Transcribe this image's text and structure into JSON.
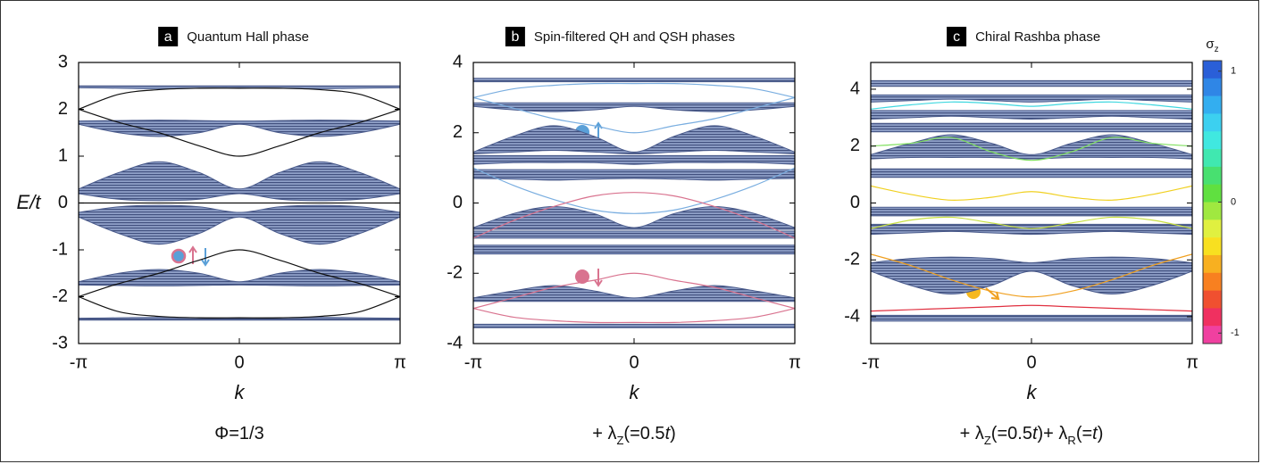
{
  "chart_data": [
    {
      "type": "band",
      "panel_label": "a",
      "title": "Quantum Hall phase",
      "ylabel": "E/t",
      "xlabel": "k",
      "caption": [
        {
          "text": "Φ=1/3"
        }
      ],
      "x": [
        -3.1416,
        -2.3562,
        -1.5708,
        -0.7854,
        0,
        0.7854,
        1.5708,
        2.3562,
        3.1416
      ],
      "xlim": [
        -3.1416,
        3.1416
      ],
      "xticks": [
        {
          "value": -3.1416,
          "label": "-π"
        },
        0,
        {
          "value": 3.1416,
          "label": "π"
        }
      ],
      "ylim": [
        -3,
        3
      ],
      "yticks": [
        -3,
        -2,
        -1,
        0,
        1,
        2,
        3
      ],
      "band_color": "#4a5b8c",
      "bands": [
        {
          "lower": [
            2.46,
            2.45,
            2.44,
            2.45,
            2.46,
            2.45,
            2.44,
            2.45,
            2.46
          ],
          "upper": [
            2.5,
            2.5,
            2.5,
            2.5,
            2.5,
            2.5,
            2.5,
            2.5,
            2.5
          ]
        },
        {
          "lower": [
            1.68,
            1.5,
            1.42,
            1.5,
            1.68,
            1.5,
            1.42,
            1.5,
            1.68
          ],
          "upper": [
            1.75,
            1.76,
            1.77,
            1.76,
            1.75,
            1.76,
            1.77,
            1.76,
            1.75
          ]
        },
        {
          "lower": [
            0.2,
            0.08,
            0.05,
            0.08,
            0.2,
            0.08,
            0.05,
            0.08,
            0.2
          ],
          "upper": [
            0.3,
            0.65,
            0.88,
            0.65,
            0.3,
            0.65,
            0.88,
            0.65,
            0.3
          ]
        },
        {
          "lower": [
            -0.3,
            -0.65,
            -0.88,
            -0.65,
            -0.3,
            -0.65,
            -0.88,
            -0.65,
            -0.3
          ],
          "upper": [
            -0.2,
            -0.08,
            -0.05,
            -0.08,
            -0.2,
            -0.08,
            -0.05,
            -0.08,
            -0.2
          ]
        },
        {
          "lower": [
            -1.75,
            -1.76,
            -1.77,
            -1.76,
            -1.75,
            -1.76,
            -1.77,
            -1.76,
            -1.75
          ],
          "upper": [
            -1.68,
            -1.5,
            -1.42,
            -1.5,
            -1.68,
            -1.5,
            -1.42,
            -1.5,
            -1.68
          ]
        },
        {
          "lower": [
            -2.5,
            -2.5,
            -2.5,
            -2.5,
            -2.5,
            -2.5,
            -2.5,
            -2.5,
            -2.5
          ],
          "upper": [
            -2.46,
            -2.45,
            -2.44,
            -2.45,
            -2.46,
            -2.45,
            -2.44,
            -2.45,
            -2.46
          ]
        }
      ],
      "lines": [
        {
          "color": "#111111",
          "values": [
            2.0,
            2.32,
            2.42,
            2.45,
            2.45,
            2.45,
            2.42,
            2.32,
            2.0
          ]
        },
        {
          "color": "#111111",
          "values": [
            2.0,
            1.72,
            1.5,
            1.22,
            1.0,
            1.22,
            1.5,
            1.72,
            2.0
          ]
        },
        {
          "color": "#111111",
          "values": [
            0,
            0,
            0,
            0,
            0,
            0,
            0,
            0,
            0
          ]
        },
        {
          "color": "#111111",
          "values": [
            -2.0,
            -1.72,
            -1.5,
            -1.22,
            -1.0,
            -1.22,
            -1.5,
            -1.72,
            -2.0
          ]
        },
        {
          "color": "#111111",
          "values": [
            -2.0,
            -2.32,
            -2.42,
            -2.45,
            -2.45,
            -2.45,
            -2.42,
            -2.32,
            -2.0
          ]
        }
      ]
    },
    {
      "type": "band",
      "panel_label": "b",
      "title": "Spin-filtered QH and QSH phases",
      "xlabel": "k",
      "caption": [
        {
          "text": "+ λ"
        },
        {
          "text": "Z",
          "sub": true
        },
        {
          "text": "(=0.5"
        },
        {
          "text": "t",
          "italic": true
        },
        {
          "text": ")"
        }
      ],
      "x": [
        -3.1416,
        -2.3562,
        -1.5708,
        -0.7854,
        0,
        0.7854,
        1.5708,
        2.3562,
        3.1416
      ],
      "xlim": [
        -3.1416,
        3.1416
      ],
      "xticks": [
        {
          "value": -3.1416,
          "label": "-π"
        },
        0,
        {
          "value": 3.1416,
          "label": "π"
        }
      ],
      "ylim": [
        -4,
        4
      ],
      "yticks": [
        -4,
        -2,
        0,
        2,
        4
      ],
      "band_color": "#4a5b8c",
      "bands": [
        {
          "lower": [
            3.45,
            3.45,
            3.45,
            3.45,
            3.45,
            3.45,
            3.45,
            3.45,
            3.45
          ],
          "upper": [
            3.55,
            3.55,
            3.55,
            3.55,
            3.55,
            3.55,
            3.55,
            3.55,
            3.55
          ]
        },
        {
          "lower": [
            2.75,
            2.65,
            2.6,
            2.65,
            2.75,
            2.65,
            2.6,
            2.65,
            2.75
          ],
          "upper": [
            2.85,
            2.85,
            2.85,
            2.85,
            2.85,
            2.85,
            2.85,
            2.85,
            2.85
          ]
        },
        {
          "lower": [
            1.4,
            1.45,
            1.5,
            1.45,
            1.4,
            1.45,
            1.5,
            1.45,
            1.4
          ],
          "upper": [
            1.45,
            1.9,
            2.2,
            1.9,
            1.45,
            1.9,
            2.2,
            1.9,
            1.45
          ]
        },
        {
          "lower": [
            1.1,
            1.15,
            1.15,
            1.15,
            1.1,
            1.15,
            1.15,
            1.15,
            1.1
          ],
          "upper": [
            1.35,
            1.35,
            1.35,
            1.35,
            1.35,
            1.35,
            1.35,
            1.35,
            1.35
          ]
        },
        {
          "lower": [
            0.7,
            0.68,
            0.65,
            0.68,
            0.7,
            0.68,
            0.65,
            0.68,
            0.7
          ],
          "upper": [
            0.95,
            0.95,
            0.95,
            0.95,
            0.95,
            0.95,
            0.95,
            0.95,
            0.95
          ]
        },
        {
          "lower": [
            -0.75,
            -0.75,
            -0.75,
            -0.75,
            -0.75,
            -0.75,
            -0.75,
            -0.75,
            -0.75
          ],
          "upper": [
            -0.7,
            -0.3,
            -0.1,
            -0.3,
            -0.7,
            -0.3,
            -0.1,
            -0.3,
            -0.7
          ]
        },
        {
          "lower": [
            -1.0,
            -1.0,
            -1.0,
            -1.0,
            -1.0,
            -1.0,
            -1.0,
            -1.0,
            -1.0
          ],
          "upper": [
            -0.8,
            -0.8,
            -0.8,
            -0.8,
            -0.8,
            -0.8,
            -0.8,
            -0.8,
            -0.8
          ]
        },
        {
          "lower": [
            -1.45,
            -1.45,
            -1.45,
            -1.45,
            -1.45,
            -1.45,
            -1.45,
            -1.45,
            -1.45
          ],
          "upper": [
            -1.2,
            -1.2,
            -1.2,
            -1.2,
            -1.2,
            -1.2,
            -1.2,
            -1.2,
            -1.2
          ]
        },
        {
          "lower": [
            -2.8,
            -2.8,
            -2.8,
            -2.8,
            -2.8,
            -2.8,
            -2.8,
            -2.8,
            -2.8
          ],
          "upper": [
            -2.7,
            -2.5,
            -2.35,
            -2.5,
            -2.7,
            -2.5,
            -2.35,
            -2.5,
            -2.7
          ]
        },
        {
          "lower": [
            -3.55,
            -3.55,
            -3.55,
            -3.55,
            -3.55,
            -3.55,
            -3.55,
            -3.55,
            -3.55
          ],
          "upper": [
            -3.45,
            -3.45,
            -3.45,
            -3.45,
            -3.45,
            -3.45,
            -3.45,
            -3.45,
            -3.45
          ]
        }
      ],
      "lines": [
        {
          "color": "#7aaee0",
          "values": [
            3.0,
            3.25,
            3.35,
            3.4,
            3.4,
            3.4,
            3.35,
            3.25,
            3.0
          ]
        },
        {
          "color": "#7aaee0",
          "values": [
            3.0,
            2.7,
            2.4,
            2.2,
            2.0,
            2.2,
            2.4,
            2.7,
            3.0
          ]
        },
        {
          "color": "#7aaee0",
          "values": [
            1.0,
            0.5,
            0.1,
            -0.2,
            -0.3,
            -0.2,
            0.1,
            0.5,
            1.0
          ]
        },
        {
          "color": "#d9738f",
          "values": [
            -1.0,
            -0.5,
            -0.1,
            0.2,
            0.3,
            0.2,
            -0.1,
            -0.5,
            -1.0
          ]
        },
        {
          "color": "#d9738f",
          "values": [
            -3.0,
            -2.7,
            -2.4,
            -2.2,
            -2.0,
            -2.2,
            -2.4,
            -2.7,
            -3.0
          ]
        },
        {
          "color": "#d9738f",
          "values": [
            -3.0,
            -3.25,
            -3.35,
            -3.4,
            -3.4,
            -3.4,
            -3.35,
            -3.25,
            -3.0
          ]
        }
      ]
    },
    {
      "type": "band",
      "panel_label": "c",
      "title": "Chiral Rashba phase",
      "xlabel": "k",
      "caption": [
        {
          "text": "+ λ"
        },
        {
          "text": "Z",
          "sub": true
        },
        {
          "text": "(=0.5"
        },
        {
          "text": "t",
          "italic": true
        },
        {
          "text": ")+ λ"
        },
        {
          "text": "R",
          "sub": true
        },
        {
          "text": "(="
        },
        {
          "text": "t",
          "italic": true
        },
        {
          "text": ")"
        }
      ],
      "x": [
        -3.1416,
        -2.3562,
        -1.5708,
        -0.7854,
        0,
        0.7854,
        1.5708,
        2.3562,
        3.1416
      ],
      "xlim": [
        -3.1416,
        3.1416
      ],
      "xticks": [
        {
          "value": -3.1416,
          "label": "-π"
        },
        0,
        {
          "value": 3.1416,
          "label": "π"
        }
      ],
      "ylim": [
        -4.94,
        4.94
      ],
      "yticks": [
        -4,
        -2,
        0,
        2,
        4
      ],
      "band_color": "#4a5b8c",
      "bands": [
        {
          "lower": [
            4.1,
            4.1,
            4.1,
            4.1,
            4.1,
            4.1,
            4.1,
            4.1,
            4.1
          ],
          "upper": [
            4.3,
            4.3,
            4.3,
            4.3,
            4.3,
            4.3,
            4.3,
            4.3,
            4.3
          ]
        },
        {
          "lower": [
            3.55,
            3.6,
            3.65,
            3.6,
            3.55,
            3.6,
            3.65,
            3.6,
            3.55
          ],
          "upper": [
            3.8,
            3.8,
            3.8,
            3.8,
            3.8,
            3.8,
            3.8,
            3.8,
            3.8
          ]
        },
        {
          "lower": [
            2.95,
            3.0,
            3.05,
            3.0,
            2.95,
            3.0,
            3.05,
            3.0,
            2.95
          ],
          "upper": [
            3.25,
            3.25,
            3.25,
            3.25,
            3.25,
            3.25,
            3.25,
            3.25,
            3.25
          ]
        },
        {
          "lower": [
            2.5,
            2.5,
            2.5,
            2.5,
            2.5,
            2.5,
            2.5,
            2.5,
            2.5
          ],
          "upper": [
            2.8,
            2.8,
            2.8,
            2.8,
            2.8,
            2.8,
            2.8,
            2.8,
            2.8
          ]
        },
        {
          "lower": [
            1.55,
            1.6,
            1.6,
            1.6,
            1.55,
            1.6,
            1.6,
            1.6,
            1.55
          ],
          "upper": [
            1.7,
            2.1,
            2.4,
            2.1,
            1.7,
            2.1,
            2.4,
            2.1,
            1.7
          ]
        },
        {
          "lower": [
            0.9,
            0.9,
            0.9,
            0.9,
            0.9,
            0.9,
            0.9,
            0.9,
            0.9
          ],
          "upper": [
            1.2,
            1.2,
            1.2,
            1.2,
            1.2,
            1.2,
            1.2,
            1.2,
            1.2
          ]
        },
        {
          "lower": [
            -0.45,
            -0.45,
            -0.45,
            -0.45,
            -0.45,
            -0.45,
            -0.45,
            -0.45,
            -0.45
          ],
          "upper": [
            -0.15,
            -0.15,
            -0.15,
            -0.15,
            -0.15,
            -0.15,
            -0.15,
            -0.15,
            -0.15
          ]
        },
        {
          "lower": [
            -1.1,
            -1.05,
            -1.0,
            -1.05,
            -1.1,
            -1.05,
            -1.0,
            -1.05,
            -1.1
          ],
          "upper": [
            -0.75,
            -0.75,
            -0.75,
            -0.75,
            -0.75,
            -0.75,
            -0.75,
            -0.75,
            -0.75
          ]
        },
        {
          "lower": [
            -2.4,
            -2.9,
            -3.2,
            -2.9,
            -2.4,
            -2.9,
            -3.2,
            -2.9,
            -2.4
          ],
          "upper": [
            -2.1,
            -1.95,
            -1.9,
            -1.95,
            -2.1,
            -1.95,
            -1.9,
            -1.95,
            -2.1
          ]
        },
        {
          "lower": [
            -4.15,
            -4.15,
            -4.15,
            -4.15,
            -4.15,
            -4.15,
            -4.15,
            -4.15,
            -4.15
          ],
          "upper": [
            -3.95,
            -3.95,
            -3.95,
            -3.95,
            -3.95,
            -3.95,
            -3.95,
            -3.95,
            -3.95
          ]
        }
      ],
      "lines": [
        {
          "color": "#40d8e0",
          "values": [
            3.3,
            3.45,
            3.55,
            3.5,
            3.4,
            3.5,
            3.55,
            3.45,
            3.3
          ]
        },
        {
          "color": "#80e060",
          "values": [
            2.0,
            2.1,
            2.3,
            1.8,
            1.5,
            1.8,
            2.3,
            2.1,
            2.0
          ]
        },
        {
          "color": "#f0d020",
          "values": [
            0.6,
            0.3,
            0.1,
            0.2,
            0.4,
            0.2,
            0.1,
            0.3,
            0.6
          ]
        },
        {
          "color": "#c8e040",
          "values": [
            -0.9,
            -0.6,
            -0.5,
            -0.7,
            -0.9,
            -0.7,
            -0.5,
            -0.6,
            -0.9
          ]
        },
        {
          "color": "#f0a020",
          "values": [
            -1.8,
            -2.2,
            -2.7,
            -3.1,
            -3.3,
            -3.1,
            -2.7,
            -2.2,
            -1.8
          ]
        },
        {
          "color": "#e03040",
          "values": [
            -3.8,
            -3.75,
            -3.7,
            -3.65,
            -3.6,
            -3.65,
            -3.7,
            -3.75,
            -3.8
          ]
        }
      ],
      "colorbar": {
        "label": [
          {
            "text": "σ"
          },
          {
            "text": "z",
            "sub": true
          }
        ],
        "lim": [
          -1.08,
          1.08
        ],
        "ticks": [
          -1,
          0,
          1
        ],
        "colors": [
          "#2a5fd8",
          "#2f86e6",
          "#33aef0",
          "#3cd0f0",
          "#40e8e0",
          "#40e8b0",
          "#48e070",
          "#60e040",
          "#a0e840",
          "#e0f040",
          "#f8e020",
          "#f8b020",
          "#f88020",
          "#f05030",
          "#f03060",
          "#f040a0"
        ]
      }
    }
  ]
}
